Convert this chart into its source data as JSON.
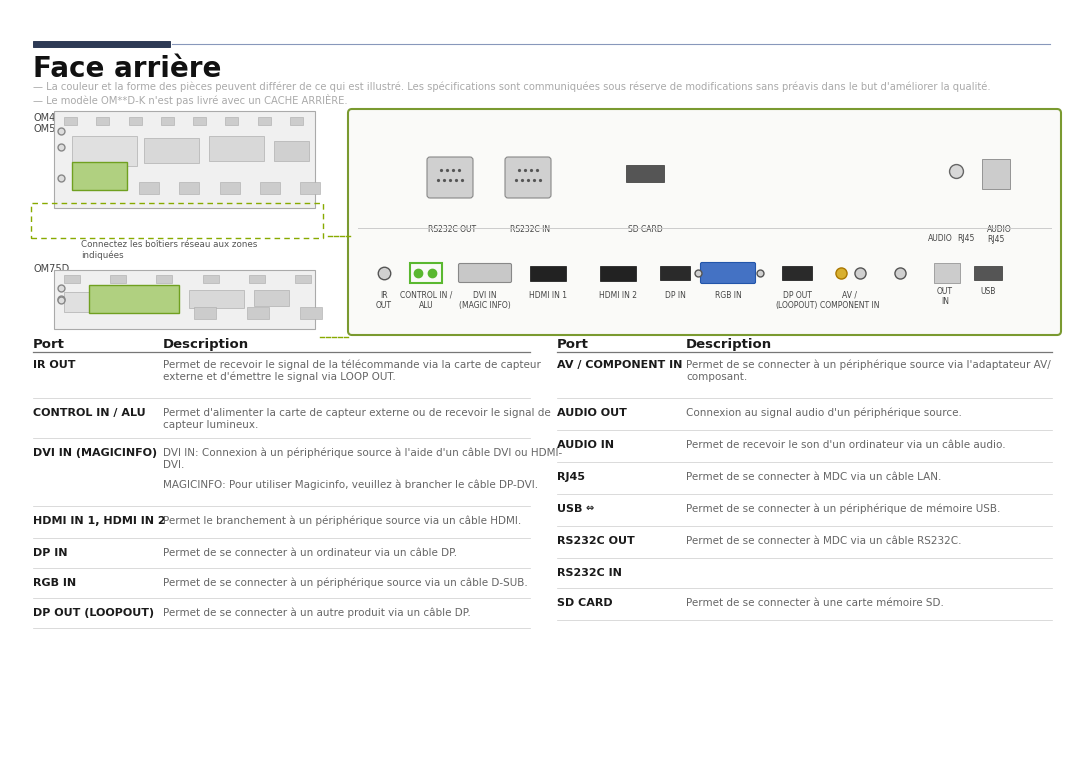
{
  "bg_color": "#ffffff",
  "title": "Face arrière",
  "note1": "— La couleur et la forme des pièces peuvent différer de ce qui est illustré. Les spécifications sont communiquées sous réserve de modifications sans préavis dans le but d'améliorer la qualité.",
  "note2": "— Le modèle OM**D-K n'est pas livré avec un CACHE ARRIÈRE.",
  "header_dark_color": "#2d3a55",
  "header_light_color": "#8898bb",
  "note_color": "#aaaaaa",
  "diagram_border_color": "#7a9a30",
  "diagram_bg_color": "#fafaf8",
  "dashed_green": "#88aa00",
  "green_dot": "#5ab830",
  "blue_vga": "#4472c4",
  "yellow_audio": "#d8b030",
  "port_label_color": "#444444",
  "table_header_color": "#1a1a1a",
  "table_port_color": "#1a1a1a",
  "table_desc_color": "#666666",
  "table_line_color": "#cccccc",
  "left_rows": [
    [
      "IR OUT",
      "Permet de recevoir le signal de la télécommande via la carte de capteur\nexterne et d'émettre le signal via LOOP OUT."
    ],
    [
      "CONTROL IN / ALU",
      "Permet d'alimenter la carte de capteur externe ou de recevoir le signal de\ncapteur lumineux."
    ],
    [
      "DVI IN (MAGICINFO)",
      "DVI IN: Connexion à un périphérique source à l'aide d'un câble DVI ou HDMI-\nDVI.\n\nMAGICINFO: Pour utiliser Magicinfo, veuillez à brancher le câble DP-DVI."
    ],
    [
      "HDMI IN 1, HDMI IN 2",
      "Permet le branchement à un périphérique source via un câble HDMI."
    ],
    [
      "DP IN",
      "Permet de se connecter à un ordinateur via un câble DP."
    ],
    [
      "RGB IN",
      "Permet de se connecter à un périphérique source via un câble D-SUB."
    ],
    [
      "DP OUT (LOOPOUT)",
      "Permet de se connecter à un autre produit via un câble DP."
    ]
  ],
  "right_rows": [
    [
      "AV / COMPONENT IN",
      "Permet de se connecter à un périphérique source via l'adaptateur AV/\ncomposant."
    ],
    [
      "AUDIO OUT",
      "Connexion au signal audio d'un périphérique source."
    ],
    [
      "AUDIO IN",
      "Permet de recevoir le son d'un ordinateur via un câble audio."
    ],
    [
      "RJ45",
      "Permet de se connecter à MDC via un câble LAN."
    ],
    [
      "USB ⇒",
      "Permet de se connecter à un périphérique de mémoire USB."
    ],
    [
      "RS232C OUT",
      "Permet de se connecter à MDC via un câble RS232C."
    ],
    [
      "RS232C IN",
      ""
    ],
    [
      "SD CARD",
      "Permet de se connecter à une carte mémoire SD."
    ]
  ]
}
